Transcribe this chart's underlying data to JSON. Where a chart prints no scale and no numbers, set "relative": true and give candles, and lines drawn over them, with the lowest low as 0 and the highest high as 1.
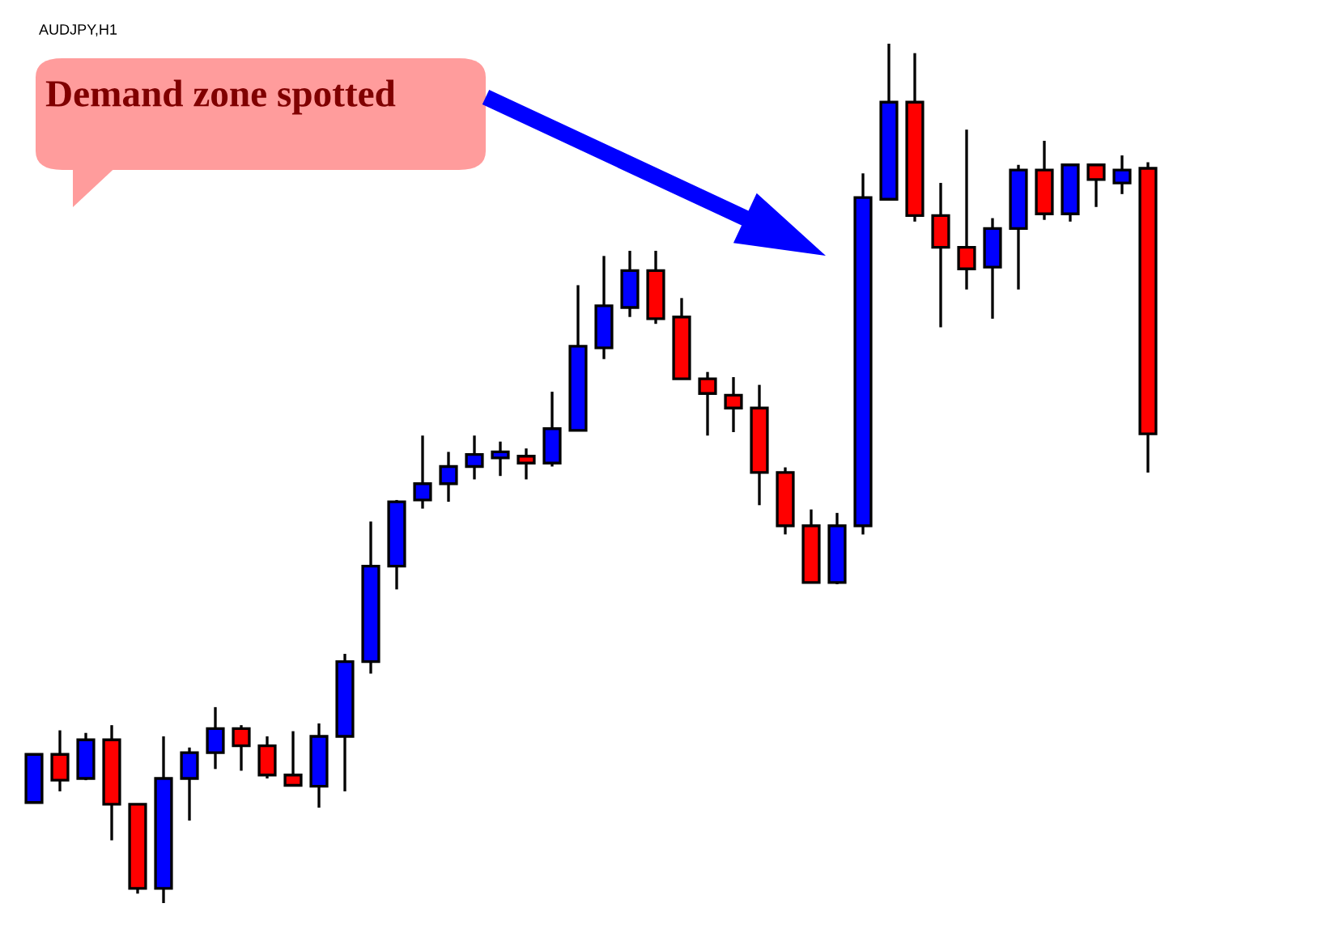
{
  "chart_data": {
    "type": "candlestick",
    "title": "AUDJPY,H1",
    "relative": true,
    "categories": [
      null,
      null,
      null,
      null,
      null,
      null,
      null,
      null,
      null,
      null,
      null,
      null,
      null,
      null,
      null,
      null,
      null,
      null,
      null,
      null,
      null,
      null,
      null,
      null,
      null,
      null,
      null,
      null,
      null,
      null,
      null,
      null,
      null,
      null,
      null,
      null,
      null,
      null,
      null,
      null,
      null,
      null,
      null,
      null
    ],
    "ohlc": [
      [
        0.117,
        0.173,
        0.117,
        0.173
      ],
      [
        0.173,
        0.201,
        0.13,
        0.143
      ],
      [
        0.145,
        0.198,
        0.143,
        0.19
      ],
      [
        0.19,
        0.207,
        0.073,
        0.115
      ],
      [
        0.115,
        0.115,
        0.011,
        0.017
      ],
      [
        0.017,
        0.194,
        0,
        0.145
      ],
      [
        0.145,
        0.181,
        0.096,
        0.175
      ],
      [
        0.175,
        0.228,
        0.156,
        0.203
      ],
      [
        0.203,
        0.207,
        0.154,
        0.183
      ],
      [
        0.183,
        0.194,
        0.145,
        0.149
      ],
      [
        0.149,
        0.2,
        0.137,
        0.137
      ],
      [
        0.136,
        0.209,
        0.111,
        0.194
      ],
      [
        0.194,
        0.29,
        0.13,
        0.281
      ],
      [
        0.281,
        0.444,
        0.267,
        0.392
      ],
      [
        0.392,
        0.469,
        0.365,
        0.467
      ],
      [
        0.469,
        0.544,
        0.459,
        0.488
      ],
      [
        0.488,
        0.525,
        0.467,
        0.508
      ],
      [
        0.508,
        0.544,
        0.493,
        0.522
      ],
      [
        0.518,
        0.537,
        0.497,
        0.525
      ],
      [
        0.52,
        0.529,
        0.493,
        0.512
      ],
      [
        0.512,
        0.595,
        0.508,
        0.552
      ],
      [
        0.55,
        0.719,
        0.55,
        0.648
      ],
      [
        0.646,
        0.753,
        0.633,
        0.695
      ],
      [
        0.693,
        0.759,
        0.682,
        0.736
      ],
      [
        0.736,
        0.759,
        0.674,
        0.68
      ],
      [
        0.682,
        0.704,
        0.61,
        0.61
      ],
      [
        0.61,
        0.618,
        0.544,
        0.593
      ],
      [
        0.591,
        0.612,
        0.548,
        0.576
      ],
      [
        0.576,
        0.603,
        0.463,
        0.501
      ],
      [
        0.501,
        0.507,
        0.429,
        0.439
      ],
      [
        0.439,
        0.458,
        0.373,
        0.373
      ],
      [
        0.373,
        0.454,
        0.371,
        0.439
      ],
      [
        0.439,
        0.849,
        0.429,
        0.821
      ],
      [
        0.819,
        1,
        0.819,
        0.932
      ],
      [
        0.932,
        0.989,
        0.793,
        0.8
      ],
      [
        0.8,
        0.838,
        0.67,
        0.763
      ],
      [
        0.763,
        0.9,
        0.714,
        0.738
      ],
      [
        0.74,
        0.797,
        0.68,
        0.785
      ],
      [
        0.785,
        0.859,
        0.714,
        0.853
      ],
      [
        0.853,
        0.887,
        0.795,
        0.802
      ],
      [
        0.802,
        0.859,
        0.793,
        0.859
      ],
      [
        0.859,
        0.859,
        0.81,
        0.842
      ],
      [
        0.838,
        0.87,
        0.825,
        0.853
      ],
      [
        0.855,
        0.862,
        0.501,
        0.546
      ]
    ],
    "colors": [
      "#0000ff",
      "#ff0000",
      "#0000ff",
      "#ff0000",
      "#ff0000",
      "#0000ff",
      "#0000ff",
      "#0000ff",
      "#ff0000",
      "#ff0000",
      "#ff0000",
      "#0000ff",
      "#0000ff",
      "#0000ff",
      "#0000ff",
      "#0000ff",
      "#0000ff",
      "#0000ff",
      "#0000ff",
      "#ff0000",
      "#0000ff",
      "#0000ff",
      "#0000ff",
      "#0000ff",
      "#ff0000",
      "#ff0000",
      "#ff0000",
      "#ff0000",
      "#ff0000",
      "#ff0000",
      "#ff0000",
      "#0000ff",
      "#0000ff",
      "#0000ff",
      "#ff0000",
      "#ff0000",
      "#ff0000",
      "#0000ff",
      "#0000ff",
      "#ff0000",
      "#0000ff",
      "#ff0000",
      "#0000ff",
      "#ff0000"
    ],
    "annotations": [
      "Demand zone spotted"
    ]
  }
}
